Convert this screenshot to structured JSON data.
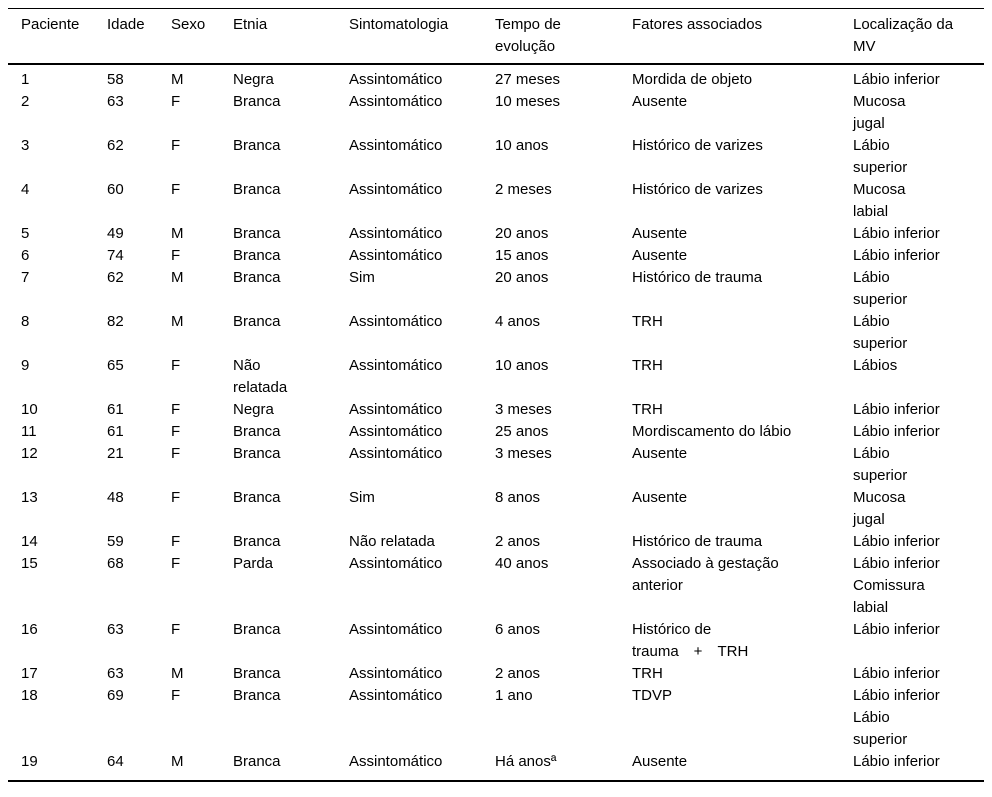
{
  "table": {
    "columns": [
      "Paciente",
      "Idade",
      "Sexo",
      "Etnia",
      "Sintomatologia",
      "Tempo de\nevolução",
      "Fatores associados",
      "Localização da\nMV"
    ],
    "rows": [
      [
        "1",
        "58",
        "M",
        "Negra",
        "Assintomático",
        "27 meses",
        "Mordida de objeto",
        "Lábio inferior"
      ],
      [
        "2",
        "63",
        "F",
        "Branca",
        "Assintomático",
        "10 meses",
        "Ausente",
        "Mucosa\njugal"
      ],
      [
        "3",
        "62",
        "F",
        "Branca",
        "Assintomático",
        "10 anos",
        "Histórico de varizes",
        "Lábio\nsuperior"
      ],
      [
        "4",
        "60",
        "F",
        "Branca",
        "Assintomático",
        "2 meses",
        "Histórico de varizes",
        "Mucosa\nlabial"
      ],
      [
        "5",
        "49",
        "M",
        "Branca",
        "Assintomático",
        "20 anos",
        "Ausente",
        "Lábio inferior"
      ],
      [
        "6",
        "74",
        "F",
        "Branca",
        "Assintomático",
        "15 anos",
        "Ausente",
        "Lábio inferior"
      ],
      [
        "7",
        "62",
        "M",
        "Branca",
        "Sim",
        "20 anos",
        "Histórico de trauma",
        "Lábio\nsuperior"
      ],
      [
        "8",
        "82",
        "M",
        "Branca",
        "Assintomático",
        "4 anos",
        "TRH",
        "Lábio\nsuperior"
      ],
      [
        "9",
        "65",
        "F",
        "Não\nrelatada",
        "Assintomático",
        "10 anos",
        "TRH",
        "Lábios"
      ],
      [
        "10",
        "61",
        "F",
        "Negra",
        "Assintomático",
        "3 meses",
        "TRH",
        "Lábio inferior"
      ],
      [
        "11",
        "61",
        "F",
        "Branca",
        "Assintomático",
        "25 anos",
        "Mordiscamento do lábio",
        "Lábio inferior"
      ],
      [
        "12",
        "21",
        "F",
        "Branca",
        "Assintomático",
        "3 meses",
        "Ausente",
        "Lábio\nsuperior"
      ],
      [
        "13",
        "48",
        "F",
        "Branca",
        "Sim",
        "8 anos",
        "Ausente",
        "Mucosa\njugal"
      ],
      [
        "14",
        "59",
        "F",
        "Branca",
        "Não relatada",
        "2 anos",
        "Histórico de trauma",
        "Lábio inferior"
      ],
      [
        "15",
        "68",
        "F",
        "Parda",
        "Assintomático",
        "40 anos",
        "Associado à gestação\nanterior",
        "Lábio inferior\nComissura\nlabial"
      ],
      [
        "16",
        "63",
        "F",
        "Branca",
        "Assintomático",
        "6 anos",
        "Histórico de\ntrauma + TRH",
        "Lábio inferior"
      ],
      [
        "17",
        "63",
        "M",
        "Branca",
        "Assintomático",
        "2 anos",
        "TRH",
        "Lábio inferior"
      ],
      [
        "18",
        "69",
        "F",
        "Branca",
        "Assintomático",
        "1 ano",
        "TDVP",
        "Lábio inferior\nLábio\nsuperior"
      ],
      [
        "19",
        "64",
        "M",
        "Branca",
        "Assintomático",
        "Há anosª",
        "Ausente",
        "Lábio inferior"
      ]
    ]
  }
}
